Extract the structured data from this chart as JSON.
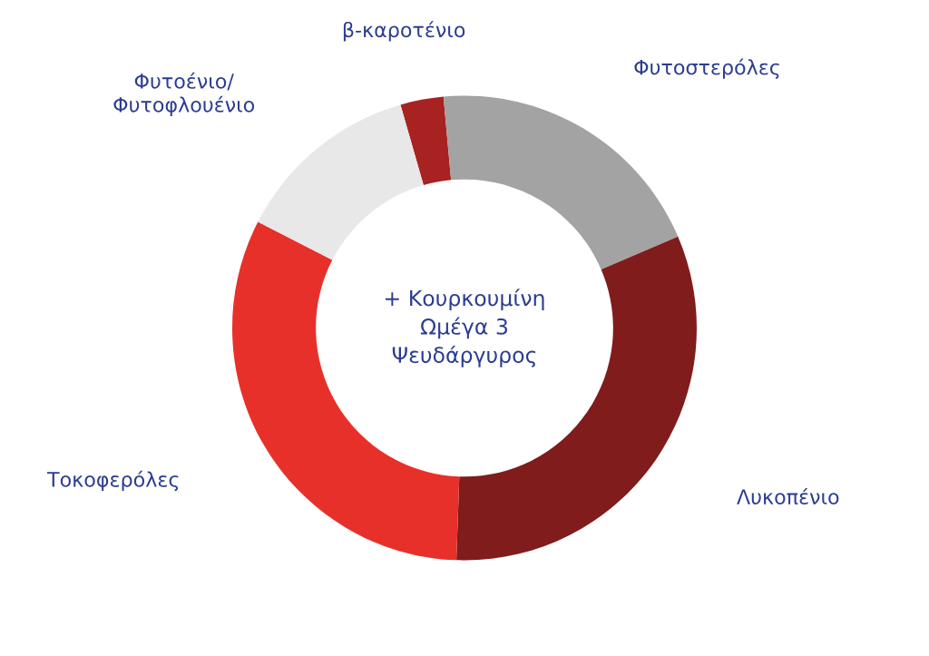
{
  "chart_data": {
    "type": "donut",
    "categories": [
      "β-καροτένιο",
      "Φυτοστερόλες",
      "Λυκοπένιο",
      "Τοκοφερόλες",
      "Φυτοένιο/\nΦυτοφλουένιο"
    ],
    "values": [
      3,
      20,
      32,
      32,
      13
    ],
    "colors": [
      "#a82222",
      "#a3a3a3",
      "#801c1c",
      "#e8302a",
      "#e8e8e8"
    ],
    "annotations": [
      "+ Κουρκουμίνη\nΩμέγα 3\nΨευδάργυρος"
    ],
    "legend": false
  }
}
